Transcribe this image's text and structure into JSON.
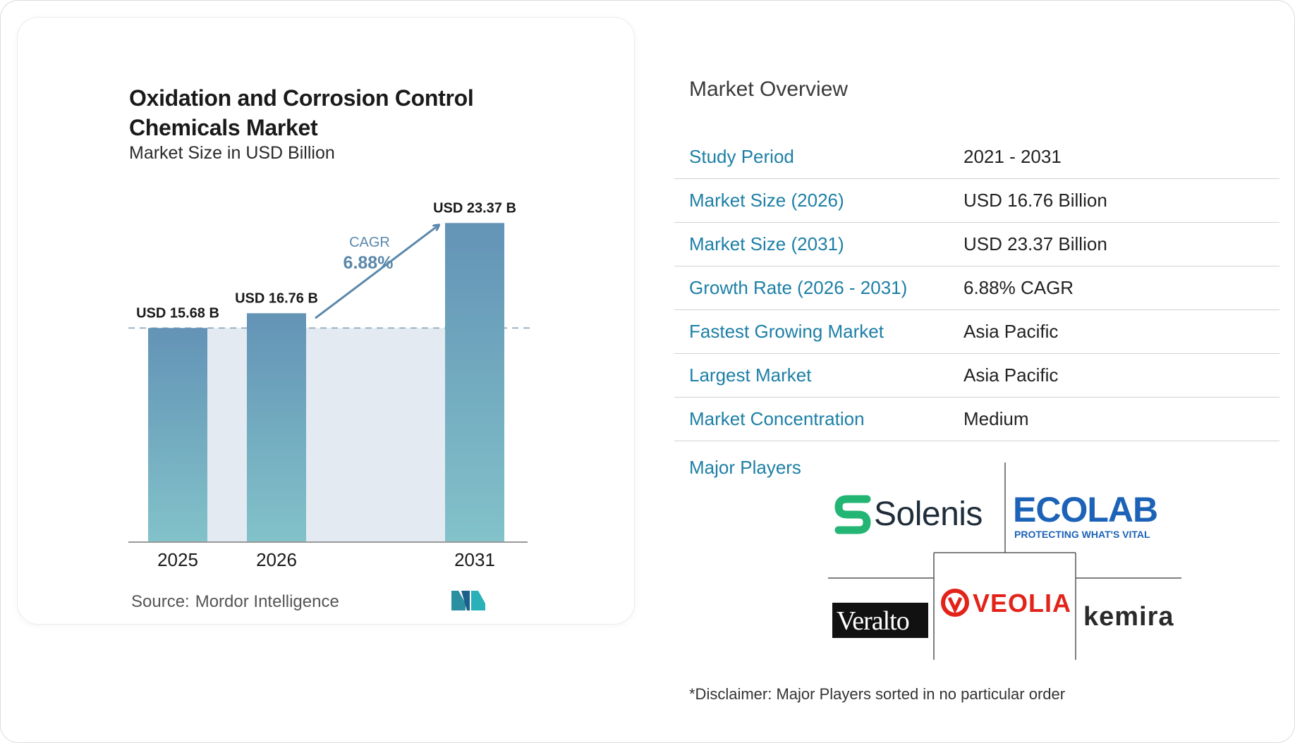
{
  "chart": {
    "title": "Oxidation and Corrosion Control Chemicals Market",
    "subtitle": "Market Size in USD Billion",
    "cagr_label": "CAGR",
    "cagr_value": "6.88%",
    "source_label": "Source:",
    "source_name": "Mordor Intelligence"
  },
  "chart_data": {
    "type": "bar",
    "categories": [
      "2025",
      "2026",
      "2031"
    ],
    "values": [
      15.68,
      16.76,
      23.37
    ],
    "value_labels": [
      "USD 15.68 B",
      "USD 16.76 B",
      "USD 23.37 B"
    ],
    "title": "Oxidation and Corrosion Control Chemicals Market",
    "subtitle": "Market Size in USD Billion",
    "xlabel": "",
    "ylabel": "",
    "annotation": "CAGR 6.88%",
    "grid": false,
    "colors": {
      "bar_top": "#6393b6",
      "bar_bottom": "#82c2c9",
      "band": "#e3eaf2",
      "arrow": "#5b88ab",
      "cagr_text": "#5b88ab"
    }
  },
  "overview": {
    "title": "Market Overview",
    "rows": [
      {
        "label": "Study Period",
        "value": "2021 - 2031"
      },
      {
        "label": "Market Size (2026)",
        "value": "USD 16.76 Billion"
      },
      {
        "label": "Market Size (2031)",
        "value": "USD 23.37 Billion"
      },
      {
        "label": "Growth Rate (2026 - 2031)",
        "value": "6.88% CAGR"
      },
      {
        "label": "Fastest Growing Market",
        "value": "Asia Pacific"
      },
      {
        "label": "Largest Market",
        "value": "Asia Pacific"
      },
      {
        "label": "Market Concentration",
        "value": "Medium"
      }
    ],
    "players_label": "Major Players",
    "players": {
      "solenis": "Solenis",
      "ecolab": "ECOLAB",
      "ecolab_tagline": "PROTECTING WHAT'S VITAL",
      "veralto": "Veralto",
      "veolia": "VEOLIA",
      "kemira": "kemira"
    },
    "disclaimer": "*Disclaimer: Major Players sorted in no particular order"
  },
  "colors": {
    "accent": "#1d7fa6",
    "solenis": "#22b573",
    "ecolab": "#1c63b7",
    "veolia": "#e2231a"
  }
}
